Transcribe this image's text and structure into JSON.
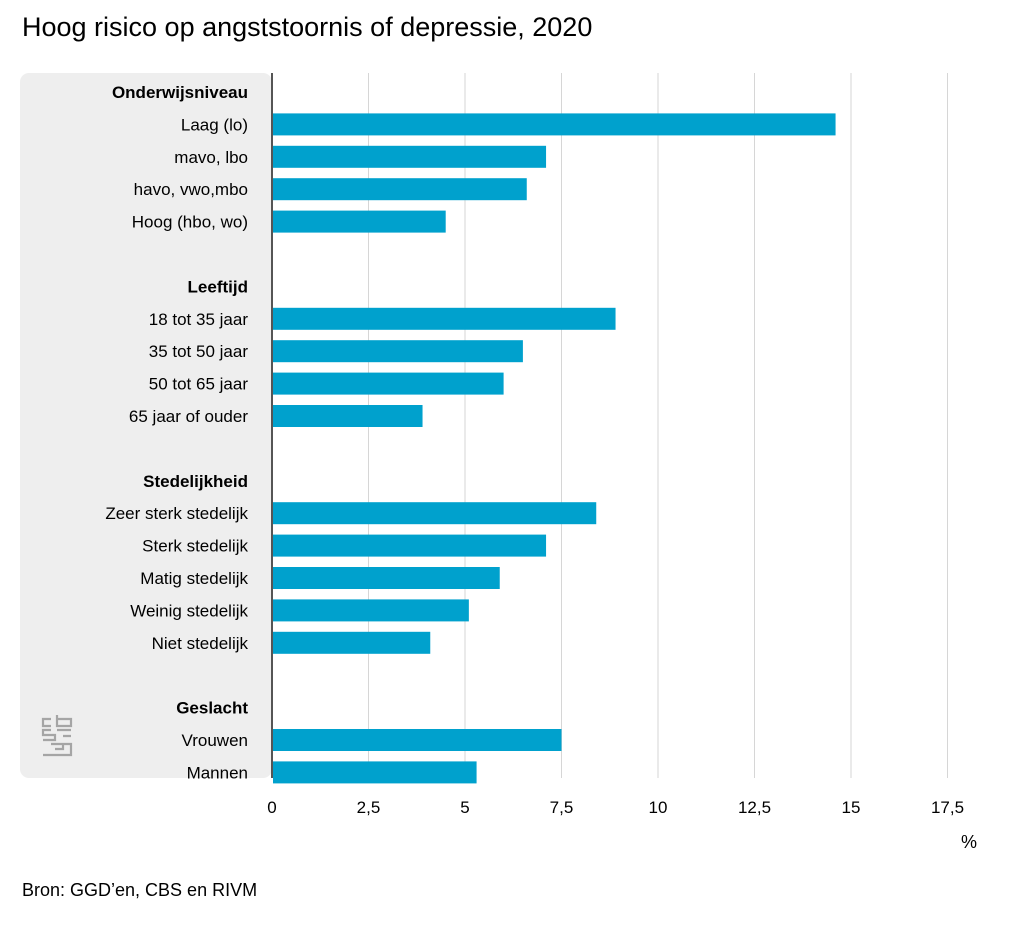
{
  "title": "Hoog risico op angststoornis of depressie, 2020",
  "source": "Bron: GGD’en, CBS en RIVM",
  "unit": "%",
  "colors": {
    "bar": "#00a1cd",
    "panel": "#eeeeee",
    "grid": "#d6d6d6",
    "axis": "#555555",
    "logo": "#a5a5a5"
  },
  "logo": "cbs",
  "chart_data": {
    "type": "bar",
    "orientation": "horizontal",
    "xlim": [
      0,
      17.5
    ],
    "xticks": [
      0,
      2.5,
      5,
      7.5,
      10,
      12.5,
      15,
      17.5
    ],
    "xtick_labels": [
      "0",
      "2,5",
      "5",
      "7,5",
      "10",
      "12,5",
      "15",
      "17,5"
    ],
    "grid": true,
    "groups": [
      {
        "name": "Onderwijsniveau",
        "categories": [
          "Laag (lo)",
          "mavo, lbo",
          "havo, vwo,mbo",
          "Hoog (hbo, wo)"
        ],
        "values": [
          14.6,
          7.1,
          6.6,
          4.5
        ]
      },
      {
        "name": "Leeftijd",
        "categories": [
          "18 tot 35 jaar",
          "35 tot 50 jaar",
          "50 tot 65 jaar",
          "65 jaar of ouder"
        ],
        "values": [
          8.9,
          6.5,
          6.0,
          3.9
        ]
      },
      {
        "name": "Stedelijkheid",
        "categories": [
          "Zeer sterk stedelijk",
          "Sterk stedelijk",
          "Matig stedelijk",
          "Weinig stedelijk",
          "Niet stedelijk"
        ],
        "values": [
          8.4,
          7.1,
          5.9,
          5.1,
          4.1
        ]
      },
      {
        "name": "Geslacht",
        "categories": [
          "Vrouwen",
          "Mannen"
        ],
        "values": [
          7.5,
          5.3
        ]
      }
    ]
  }
}
